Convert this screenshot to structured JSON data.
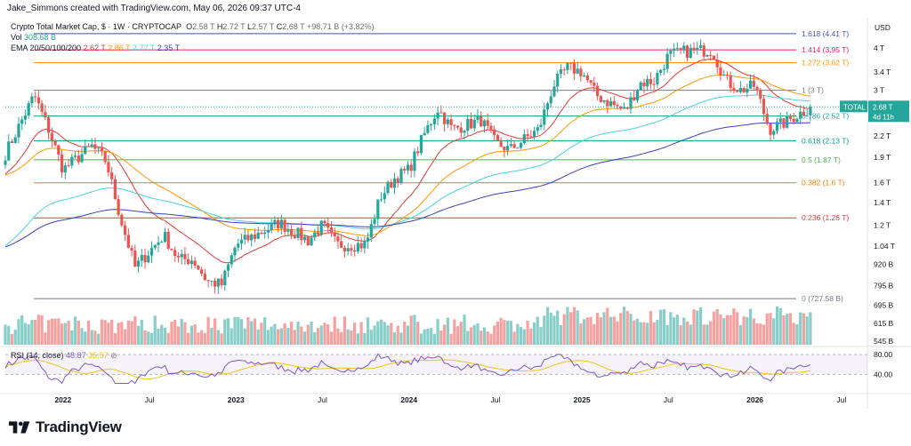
{
  "attribution": "Jake_Simmons created with TradingView.com, May 06, 2026 09:37 UTC-4",
  "currency": "USD",
  "header": {
    "symbol": "Crypto Total Market Cap, $ · 1W · CRYPTOCAP",
    "o_label": "O",
    "o_val": "2.58 T",
    "h_label": "H",
    "h_val": "2.72 T",
    "l_label": "L",
    "l_val": "2.57 T",
    "c_label": "C",
    "c_val": "2.68 T",
    "change": "+98.71 B (+3.82%)",
    "vol_label": "Vol",
    "vol_val": "308.68 B",
    "ema_label": "EMA 20/50/100/200",
    "ema20": "2.62 T",
    "ema50": "2.86 T",
    "ema100": "2.77 T",
    "ema200": "2.35 T"
  },
  "rsi": {
    "label": "RSI (14, close)",
    "value": "48.87",
    "ma": "35.57",
    "ticks": [
      "80.00",
      "40.00"
    ]
  },
  "price_tag": {
    "label": "TOTAL",
    "value": "2.68 T",
    "countdown": "4d 11h"
  },
  "logo": "TradingView",
  "colors": {
    "up": "#26a69a",
    "down": "#ef5350",
    "ema20": "#e53935",
    "ema50": "#ff9800",
    "ema100": "#4dd0e1",
    "ema200": "#3f3fb5",
    "rsi": "#7e57c2",
    "rsi_ma": "#f0c419"
  },
  "chart_data": {
    "type": "candlestick",
    "title": "Crypto Total Market Cap, $ · 1W · CRYPTOCAP",
    "ylabel": "USD",
    "y_scale": "log",
    "y_ticks": [
      "4 T",
      "3.4 T",
      "3 T",
      "2.2 T",
      "1.9 T",
      "1.6 T",
      "1.4 T",
      "1.2 T",
      "1.04 T",
      "920 B",
      "795 B",
      "695 B",
      "615 B",
      "545 B"
    ],
    "y_tick_values": [
      4.0,
      3.4,
      3.0,
      2.2,
      1.9,
      1.6,
      1.4,
      1.2,
      1.04,
      0.92,
      0.795,
      0.695,
      0.615,
      0.545
    ],
    "x_ticks": [
      "2022",
      "Jul",
      "2023",
      "Jul",
      "2024",
      "Jul",
      "2025",
      "Jul",
      "2026",
      "Jul"
    ],
    "fib_levels": [
      {
        "ratio": "1.618",
        "value": "4.41 T",
        "v": 4.41,
        "color": "#3f51b5"
      },
      {
        "ratio": "1.414",
        "value": "3.95 T",
        "v": 3.95,
        "color": "#e91e63"
      },
      {
        "ratio": "1.272",
        "value": "3.62 T",
        "v": 3.62,
        "color": "#ff9800"
      },
      {
        "ratio": "1",
        "value": "3 T",
        "v": 3.0,
        "color": "#787b86"
      },
      {
        "ratio": "0.786",
        "value": "2.52 T",
        "v": 2.52,
        "color": "#26a69a"
      },
      {
        "ratio": "0.618",
        "value": "2.13 T",
        "v": 2.13,
        "color": "#089981"
      },
      {
        "ratio": "0.5",
        "value": "1.87 T",
        "v": 1.87,
        "color": "#4caf50"
      },
      {
        "ratio": "0.382",
        "value": "1.6 T",
        "v": 1.6,
        "color": "#f57c00"
      },
      {
        "ratio": "0.236",
        "value": "1.26 T",
        "v": 1.26,
        "color": "#e53935"
      },
      {
        "ratio": "0",
        "value": "727.58 B",
        "v": 0.7276,
        "color": "#787b86"
      }
    ],
    "series": [
      {
        "name": "Crypto Total Market Cap",
        "close_points": [
          [
            "2021-09",
            1.95
          ],
          [
            "2021-11",
            2.9
          ],
          [
            "2021-12",
            2.3
          ],
          [
            "2022-01",
            1.75
          ],
          [
            "2022-03",
            2.05
          ],
          [
            "2022-04",
            1.85
          ],
          [
            "2022-05",
            1.25
          ],
          [
            "2022-06",
            0.9
          ],
          [
            "2022-08",
            1.12
          ],
          [
            "2022-09",
            0.95
          ],
          [
            "2022-10",
            0.95
          ],
          [
            "2022-11",
            0.82
          ],
          [
            "2022-12",
            0.8
          ],
          [
            "2023-01",
            1.05
          ],
          [
            "2023-02",
            1.1
          ],
          [
            "2023-04",
            1.22
          ],
          [
            "2023-06",
            1.08
          ],
          [
            "2023-07",
            1.2
          ],
          [
            "2023-08",
            1.05
          ],
          [
            "2023-10",
            1.05
          ],
          [
            "2023-11",
            1.45
          ],
          [
            "2023-12",
            1.65
          ],
          [
            "2024-01",
            1.75
          ],
          [
            "2024-02",
            2.2
          ],
          [
            "2024-03",
            2.65
          ],
          [
            "2024-04",
            2.3
          ],
          [
            "2024-06",
            2.45
          ],
          [
            "2024-07",
            2.1
          ],
          [
            "2024-08",
            2.0
          ],
          [
            "2024-09",
            2.15
          ],
          [
            "2024-10",
            2.3
          ],
          [
            "2024-11",
            3.1
          ],
          [
            "2024-12",
            3.5
          ],
          [
            "2025-01",
            3.4
          ],
          [
            "2025-02",
            2.9
          ],
          [
            "2025-04",
            2.6
          ],
          [
            "2025-05",
            3.15
          ],
          [
            "2025-06",
            3.2
          ],
          [
            "2025-07",
            3.8
          ],
          [
            "2025-08",
            3.9
          ],
          [
            "2025-10",
            3.95
          ],
          [
            "2025-11",
            3.2
          ],
          [
            "2025-12",
            3.0
          ],
          [
            "2026-01",
            3.1
          ],
          [
            "2026-02",
            2.3
          ],
          [
            "2026-03",
            2.4
          ],
          [
            "2026-04",
            2.55
          ],
          [
            "2026-05",
            2.68
          ]
        ]
      }
    ]
  }
}
